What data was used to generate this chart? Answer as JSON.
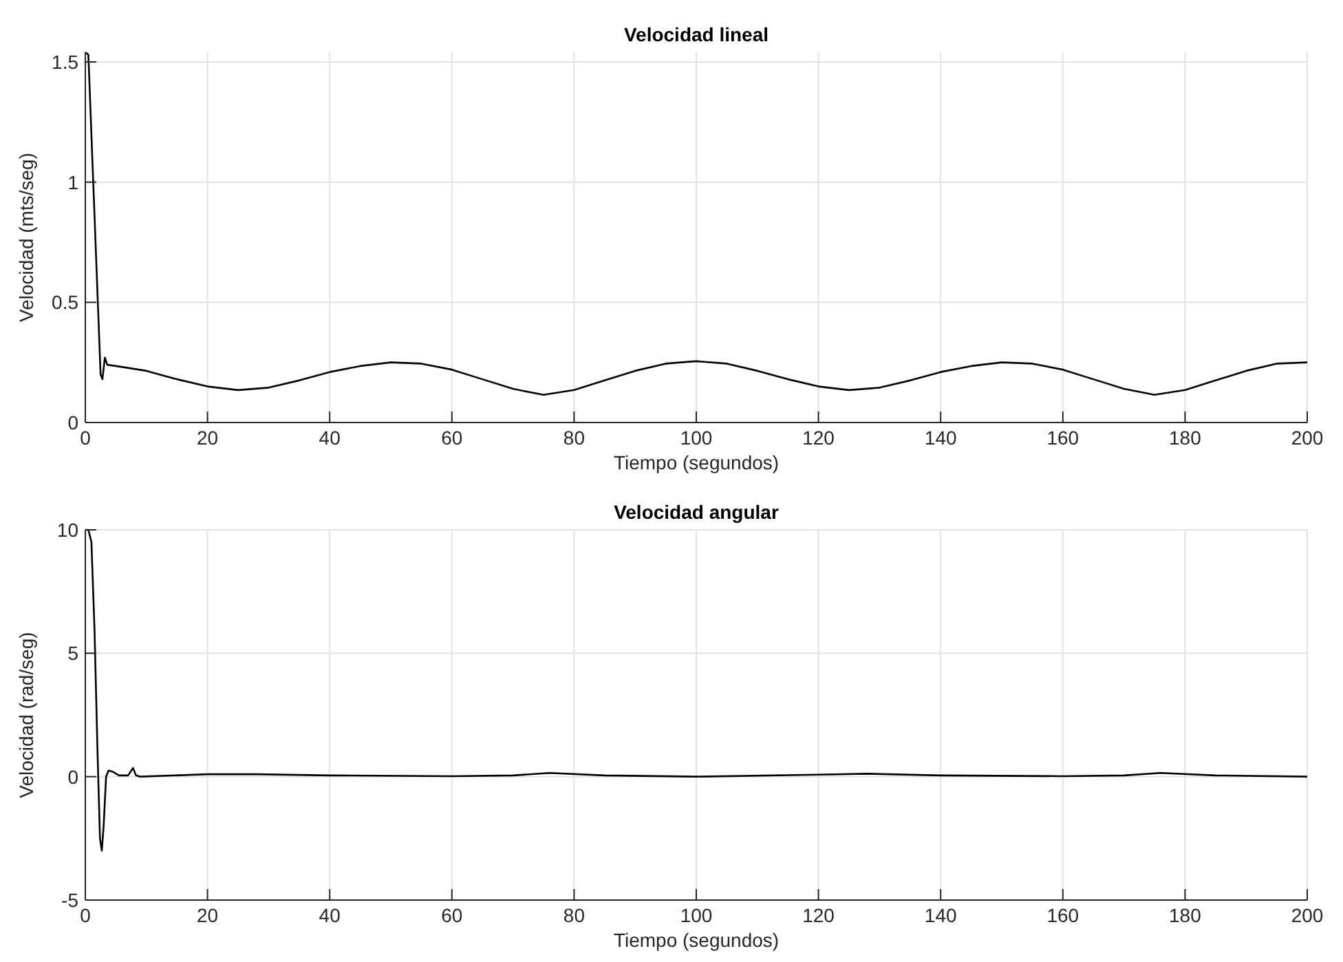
{
  "chart_data": [
    {
      "type": "line",
      "title": "Velocidad lineal",
      "xlabel": "Tiempo (segundos)",
      "ylabel": "Velocidad (mts/seg)",
      "xlim": [
        0,
        200
      ],
      "ylim": [
        0,
        1.54
      ],
      "xticks": [
        0,
        20,
        40,
        60,
        80,
        100,
        120,
        140,
        160,
        180,
        200
      ],
      "yticks": [
        0,
        0.5,
        1,
        1.5
      ],
      "grid": true,
      "series": [
        {
          "color": "#000000",
          "x": [
            0,
            0.5,
            2.5,
            2.8,
            3.2,
            3.6,
            5,
            10,
            15,
            20,
            25,
            30,
            35,
            40,
            45,
            50,
            55,
            60,
            65,
            70,
            75,
            80,
            85,
            90,
            95,
            100,
            105,
            110,
            115,
            120,
            125,
            130,
            135,
            140,
            145,
            150,
            155,
            160,
            165,
            170,
            175,
            180,
            185,
            190,
            195,
            200
          ],
          "values": [
            1.54,
            1.53,
            0.2,
            0.18,
            0.27,
            0.24,
            0.235,
            0.215,
            0.18,
            0.15,
            0.135,
            0.145,
            0.175,
            0.21,
            0.235,
            0.25,
            0.245,
            0.22,
            0.18,
            0.14,
            0.115,
            0.135,
            0.175,
            0.215,
            0.245,
            0.255,
            0.245,
            0.215,
            0.18,
            0.15,
            0.135,
            0.145,
            0.175,
            0.21,
            0.235,
            0.25,
            0.245,
            0.22,
            0.18,
            0.14,
            0.115,
            0.135,
            0.175,
            0.215,
            0.245,
            0.25
          ]
        }
      ]
    },
    {
      "type": "line",
      "title": "Velocidad angular",
      "xlabel": "Tiempo (segundos)",
      "ylabel": "Velocidad (rad/seg)",
      "xlim": [
        0,
        200
      ],
      "ylim": [
        -5,
        10
      ],
      "xticks": [
        0,
        20,
        40,
        60,
        80,
        100,
        120,
        140,
        160,
        180,
        200
      ],
      "yticks": [
        -5,
        0,
        5,
        10
      ],
      "grid": true,
      "series": [
        {
          "color": "#000000",
          "x": [
            0,
            0.5,
            1,
            1.5,
            2,
            2.4,
            2.7,
            3,
            3.4,
            3.8,
            4.5,
            5.5,
            7,
            7.8,
            8.3,
            9,
            20,
            28,
            40,
            60,
            70,
            76,
            85,
            100,
            120,
            128,
            140,
            160,
            170,
            176,
            185,
            200
          ],
          "values": [
            10,
            10,
            9.5,
            6,
            1,
            -2.5,
            -3,
            -2,
            0,
            0.25,
            0.2,
            0.05,
            0.05,
            0.35,
            0.05,
            0,
            0.1,
            0.1,
            0.05,
            0.02,
            0.05,
            0.15,
            0.05,
            0,
            0.08,
            0.12,
            0.05,
            0.02,
            0.05,
            0.15,
            0.05,
            0
          ]
        }
      ]
    }
  ]
}
